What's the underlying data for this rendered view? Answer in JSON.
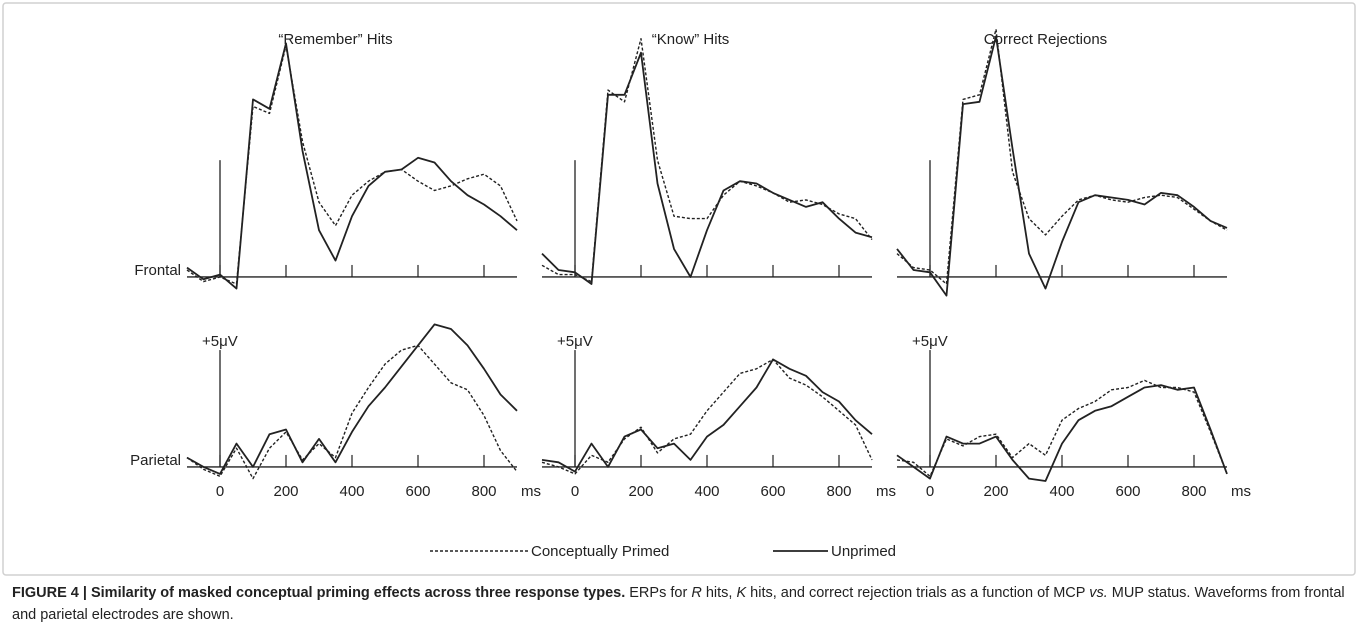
{
  "chart_data": [
    {
      "type": "line",
      "title": "“Remember” Hits",
      "ylabel": "Frontal",
      "x": [
        -100,
        -50,
        0,
        50,
        100,
        150,
        200,
        250,
        300,
        350,
        400,
        450,
        500,
        550,
        600,
        650,
        700,
        750,
        800,
        850,
        900
      ],
      "xlim": [
        -100,
        900
      ],
      "ylim": [
        -1.5,
        11
      ],
      "xticks": [
        0,
        200,
        400,
        600,
        800
      ],
      "xtick_labels": false,
      "yticks": [
        5
      ],
      "ytick_labels": false,
      "series": [
        {
          "name": "Conceptually Primed",
          "color": "#222222",
          "dash": true,
          "values": [
            0.3,
            -0.2,
            0.0,
            -0.3,
            7.3,
            7.0,
            9.9,
            5.8,
            3.2,
            2.2,
            3.5,
            4.1,
            4.5,
            4.6,
            4.1,
            3.7,
            3.9,
            4.2,
            4.4,
            3.9,
            2.4
          ]
        },
        {
          "name": "Unprimed",
          "color": "#222222",
          "dash": false,
          "values": [
            0.4,
            -0.1,
            0.1,
            -0.5,
            7.6,
            7.2,
            10.0,
            5.4,
            2.0,
            0.7,
            2.6,
            3.9,
            4.5,
            4.6,
            5.1,
            4.9,
            4.1,
            3.5,
            3.1,
            2.6,
            2.0
          ]
        }
      ]
    },
    {
      "type": "line",
      "title": "“Know” Hits",
      "x": [
        -100,
        -50,
        0,
        50,
        100,
        150,
        200,
        250,
        300,
        350,
        400,
        450,
        500,
        550,
        600,
        650,
        700,
        750,
        800,
        850,
        900
      ],
      "xlim": [
        -100,
        900
      ],
      "ylim": [
        -1.5,
        11
      ],
      "xticks": [
        0,
        200,
        400,
        600,
        800
      ],
      "xtick_labels": false,
      "yticks": [
        5
      ],
      "ytick_labels": false,
      "series": [
        {
          "color": "#222222",
          "dash": true,
          "values": [
            0.5,
            0.1,
            0.1,
            -0.2,
            8.0,
            7.5,
            10.2,
            5.0,
            2.6,
            2.5,
            2.5,
            3.5,
            4.1,
            3.9,
            3.6,
            3.2,
            3.3,
            3.1,
            2.7,
            2.5,
            1.6
          ]
        },
        {
          "color": "#222222",
          "dash": false,
          "values": [
            1.0,
            0.3,
            0.2,
            -0.3,
            7.8,
            7.8,
            9.6,
            4.0,
            1.2,
            0.0,
            2.0,
            3.7,
            4.1,
            4.0,
            3.6,
            3.3,
            3.0,
            3.2,
            2.5,
            1.9,
            1.7
          ]
        }
      ]
    },
    {
      "type": "line",
      "title": "Correct Rejections",
      "x": [
        -100,
        -50,
        0,
        50,
        100,
        150,
        200,
        250,
        300,
        350,
        400,
        450,
        500,
        550,
        600,
        650,
        700,
        750,
        800,
        850,
        900
      ],
      "xlim": [
        -100,
        900
      ],
      "ylim": [
        -1.5,
        11
      ],
      "xticks": [
        0,
        200,
        400,
        600,
        800
      ],
      "xtick_labels": false,
      "yticks": [
        5
      ],
      "ytick_labels": false,
      "series": [
        {
          "color": "#222222",
          "dash": true,
          "values": [
            1.0,
            0.4,
            0.3,
            -0.3,
            7.6,
            7.8,
            10.6,
            4.5,
            2.5,
            1.8,
            2.6,
            3.3,
            3.5,
            3.3,
            3.2,
            3.4,
            3.5,
            3.4,
            2.9,
            2.4,
            2.0
          ]
        },
        {
          "color": "#222222",
          "dash": false,
          "values": [
            1.2,
            0.3,
            0.2,
            -0.8,
            7.4,
            7.5,
            10.3,
            5.5,
            1.0,
            -0.5,
            1.5,
            3.2,
            3.5,
            3.4,
            3.3,
            3.1,
            3.6,
            3.5,
            3.0,
            2.4,
            2.1
          ]
        }
      ]
    },
    {
      "type": "line",
      "ylabel": "Parietal",
      "xlabel": "ms",
      "x": [
        -100,
        -50,
        0,
        50,
        100,
        150,
        200,
        250,
        300,
        350,
        400,
        450,
        500,
        550,
        600,
        650,
        700,
        750,
        800,
        850,
        900
      ],
      "xlim": [
        -100,
        900
      ],
      "ylim": [
        -1.5,
        6.5
      ],
      "xticks": [
        0,
        200,
        400,
        600,
        800
      ],
      "yticks": [
        {
          "value": 5,
          "label": "+5μV"
        }
      ],
      "series": [
        {
          "color": "#222222",
          "dash": true,
          "values": [
            0.4,
            -0.1,
            -0.4,
            0.8,
            -0.5,
            0.8,
            1.5,
            0.3,
            1.0,
            0.4,
            2.3,
            3.4,
            4.4,
            5.0,
            5.2,
            4.4,
            3.6,
            3.3,
            2.2,
            0.7,
            -0.2
          ]
        },
        {
          "color": "#222222",
          "dash": false,
          "values": [
            0.4,
            0.0,
            -0.3,
            1.0,
            0.0,
            1.4,
            1.6,
            0.2,
            1.2,
            0.2,
            1.5,
            2.6,
            3.4,
            4.3,
            5.2,
            6.1,
            5.9,
            5.2,
            4.2,
            3.1,
            2.4
          ]
        }
      ]
    },
    {
      "type": "line",
      "xlabel": "ms",
      "x": [
        -100,
        -50,
        0,
        50,
        100,
        150,
        200,
        250,
        300,
        350,
        400,
        450,
        500,
        550,
        600,
        650,
        700,
        750,
        800,
        850,
        900
      ],
      "xlim": [
        -100,
        900
      ],
      "ylim": [
        -1.5,
        6.5
      ],
      "xticks": [
        0,
        200,
        400,
        600,
        800
      ],
      "yticks": [
        {
          "value": 5,
          "label": "+5μV"
        }
      ],
      "series": [
        {
          "color": "#222222",
          "dash": true,
          "values": [
            0.2,
            0.0,
            -0.3,
            0.5,
            0.2,
            1.2,
            1.7,
            0.6,
            1.2,
            1.4,
            2.4,
            3.2,
            4.0,
            4.2,
            4.6,
            3.8,
            3.5,
            3.0,
            2.4,
            1.8,
            0.3
          ]
        },
        {
          "color": "#222222",
          "dash": false,
          "values": [
            0.3,
            0.2,
            -0.2,
            1.0,
            0.0,
            1.3,
            1.6,
            0.8,
            1.0,
            0.3,
            1.3,
            1.8,
            2.6,
            3.4,
            4.6,
            4.2,
            3.9,
            3.2,
            2.8,
            2.0,
            1.4
          ]
        }
      ]
    },
    {
      "type": "line",
      "xlabel": "ms",
      "x": [
        -100,
        -50,
        0,
        50,
        100,
        150,
        200,
        250,
        300,
        350,
        400,
        450,
        500,
        550,
        600,
        650,
        700,
        750,
        800,
        850,
        900
      ],
      "xlim": [
        -100,
        900
      ],
      "ylim": [
        -1.5,
        6.5
      ],
      "xticks": [
        0,
        200,
        400,
        600,
        800
      ],
      "yticks": [
        {
          "value": 5,
          "label": "+5μV"
        }
      ],
      "series": [
        {
          "color": "#222222",
          "dash": true,
          "values": [
            0.3,
            0.2,
            -0.4,
            1.2,
            0.9,
            1.3,
            1.4,
            0.4,
            1.0,
            0.5,
            2.0,
            2.5,
            2.8,
            3.3,
            3.4,
            3.7,
            3.4,
            3.4,
            3.2,
            1.5,
            -0.3
          ]
        },
        {
          "color": "#222222",
          "dash": false,
          "values": [
            0.5,
            0.0,
            -0.5,
            1.3,
            1.0,
            1.0,
            1.3,
            0.3,
            -0.5,
            -0.6,
            1.0,
            2.0,
            2.4,
            2.6,
            3.0,
            3.4,
            3.5,
            3.3,
            3.4,
            1.6,
            -0.3
          ]
        }
      ]
    }
  ],
  "caption": {
    "label": "FIGURE 4 | Similarity of masked conceptual priming effects across three response types.",
    "runs": [
      "ERPs for ",
      "R",
      " hits, ",
      "K",
      " hits, and correct rejection trials as a function of MCP ",
      "vs.",
      " MUP status. Waveforms from frontal and parietal electrodes are shown."
    ],
    "italic_runs": [
      1,
      3,
      5
    ]
  }
}
